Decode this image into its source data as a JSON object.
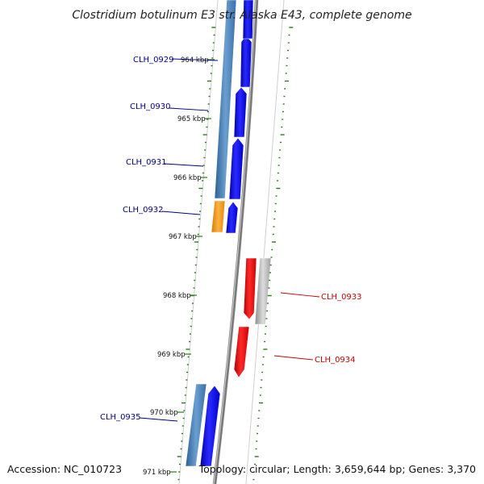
{
  "title": "Clostridium botulinum E3 str. Alaska E43, complete genome",
  "footer": {
    "accession": "Accession: NC_010723",
    "topology": "Topology: circular; Length: 3,659,644 bp; Genes: 3,370"
  },
  "colors": {
    "forward_gene": "#0000ee",
    "forward_gene_dark": "#3a6ea8",
    "orange_gene": "#f39a1c",
    "reverse_gene": "#ee0000",
    "grey_gene": "#b4b4b4",
    "tick": "#2a7a1a",
    "label_forward": "#00008b",
    "label_reverse": "#cc0000"
  },
  "ticks": [
    {
      "label": "964 kbp"
    },
    {
      "label": "965 kbp"
    },
    {
      "label": "966 kbp"
    },
    {
      "label": "967 kbp"
    },
    {
      "label": "968 kbp"
    },
    {
      "label": "969 kbp"
    },
    {
      "label": "970 kbp"
    },
    {
      "label": "971 kbp"
    }
  ],
  "genes": [
    {
      "id": "CLH_0929",
      "strand": "forward"
    },
    {
      "id": "CLH_0930",
      "strand": "forward"
    },
    {
      "id": "CLH_0931",
      "strand": "forward"
    },
    {
      "id": "CLH_0932",
      "strand": "forward"
    },
    {
      "id": "CLH_0933",
      "strand": "reverse"
    },
    {
      "id": "CLH_0934",
      "strand": "reverse"
    },
    {
      "id": "CLH_0935",
      "strand": "forward"
    }
  ]
}
